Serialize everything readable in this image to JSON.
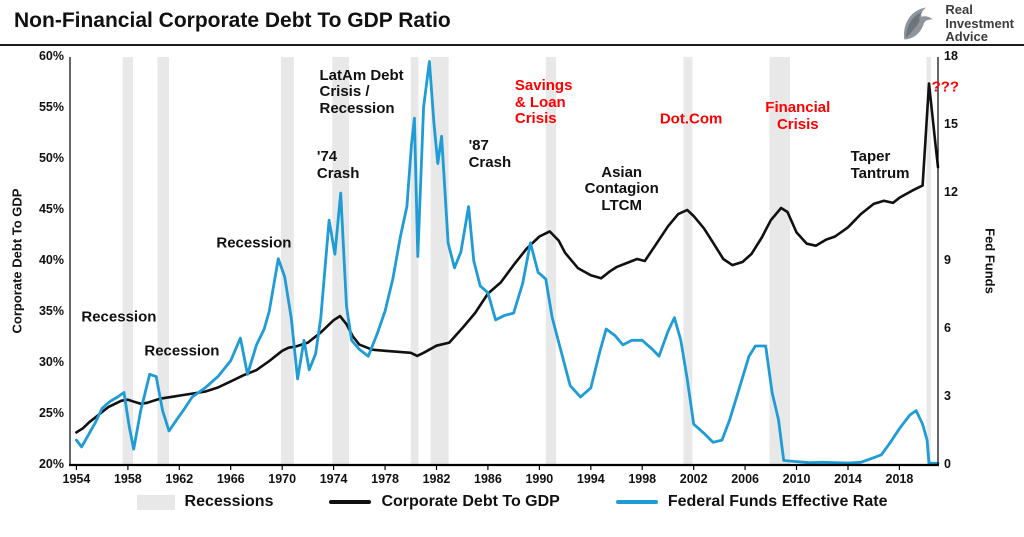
{
  "header": {
    "title": "Non-Financial Corporate Debt To GDP Ratio"
  },
  "logo": {
    "lines": [
      "Real",
      "Investment",
      "Advice"
    ]
  },
  "legend": {
    "items": [
      {
        "label": "Recessions",
        "type": "band",
        "color": "#e8e8e8"
      },
      {
        "label": "Corporate Debt To GDP",
        "type": "line",
        "color": "#111111"
      },
      {
        "label": "Federal Funds Effective Rate",
        "type": "line",
        "color": "#1F9BD5"
      }
    ]
  },
  "chart_data": {
    "type": "line",
    "title": "Non-Financial Corporate Debt To GDP Ratio",
    "grid": false,
    "legend_position": "bottom",
    "x_axis": {
      "min": 1953.5,
      "max": 2021,
      "ticks": [
        1954,
        1958,
        1962,
        1966,
        1970,
        1974,
        1978,
        1982,
        1986,
        1990,
        1994,
        1998,
        2002,
        2006,
        2010,
        2014,
        2018
      ]
    },
    "y_left": {
      "label": "Corporate Debt To GDP",
      "min": 20,
      "max": 60,
      "tick_values": [
        20,
        25,
        30,
        35,
        40,
        45,
        50,
        55,
        60
      ],
      "tick_labels": [
        "20%",
        "25%",
        "30%",
        "35%",
        "40%",
        "45%",
        "50%",
        "55%",
        "60%"
      ]
    },
    "y_right": {
      "label": "Fed Funds",
      "min": 0,
      "max": 18,
      "tick_values": [
        0,
        3,
        6,
        9,
        12,
        15,
        18
      ],
      "tick_labels": [
        "0",
        "3",
        "6",
        "9",
        "12",
        "15",
        "18"
      ]
    },
    "recessions": {
      "label": "Recessions",
      "color": "#e8e8e8",
      "bands": [
        [
          1957.6,
          1958.4
        ],
        [
          1960.3,
          1961.2
        ],
        [
          1969.9,
          1970.9
        ],
        [
          1973.9,
          1975.2
        ],
        [
          1980.0,
          1980.6
        ],
        [
          1981.55,
          1982.95
        ],
        [
          1990.5,
          1991.3
        ],
        [
          2001.2,
          2001.9
        ],
        [
          2007.9,
          2009.5
        ],
        [
          2020.1,
          2020.45
        ]
      ]
    },
    "series": [
      {
        "name": "Corporate Debt To GDP",
        "axis": "left",
        "color": "#111111",
        "width": 2.6,
        "points": [
          [
            1954,
            23.2
          ],
          [
            1954.5,
            23.6
          ],
          [
            1955,
            24.2
          ],
          [
            1955.5,
            24.7
          ],
          [
            1956,
            25.2
          ],
          [
            1956.5,
            25.7
          ],
          [
            1957,
            26.0
          ],
          [
            1957.5,
            26.3
          ],
          [
            1958,
            26.4
          ],
          [
            1958.5,
            26.2
          ],
          [
            1959,
            26.0
          ],
          [
            1959.5,
            26.1
          ],
          [
            1960,
            26.3
          ],
          [
            1960.5,
            26.5
          ],
          [
            1961,
            26.6
          ],
          [
            1961.5,
            26.7
          ],
          [
            1962,
            26.8
          ],
          [
            1963,
            27.0
          ],
          [
            1964,
            27.2
          ],
          [
            1965,
            27.6
          ],
          [
            1966,
            28.2
          ],
          [
            1966.5,
            28.5
          ],
          [
            1967,
            28.8
          ],
          [
            1968,
            29.3
          ],
          [
            1969,
            30.2
          ],
          [
            1970,
            31.2
          ],
          [
            1970.5,
            31.5
          ],
          [
            1971,
            31.6
          ],
          [
            1972,
            32.0
          ],
          [
            1973,
            33.0
          ],
          [
            1974,
            34.2
          ],
          [
            1974.5,
            34.6
          ],
          [
            1975,
            33.8
          ],
          [
            1975.5,
            32.6
          ],
          [
            1976,
            31.8
          ],
          [
            1977,
            31.3
          ],
          [
            1978,
            31.2
          ],
          [
            1979,
            31.1
          ],
          [
            1980,
            31.0
          ],
          [
            1980.5,
            30.7
          ],
          [
            1981,
            31.0
          ],
          [
            1982,
            31.7
          ],
          [
            1983,
            32.0
          ],
          [
            1984,
            33.4
          ],
          [
            1985,
            34.9
          ],
          [
            1986,
            36.8
          ],
          [
            1987,
            37.9
          ],
          [
            1988,
            39.6
          ],
          [
            1989,
            41.2
          ],
          [
            1990,
            42.4
          ],
          [
            1990.8,
            42.9
          ],
          [
            1991.5,
            42.0
          ],
          [
            1992,
            40.8
          ],
          [
            1993,
            39.3
          ],
          [
            1994,
            38.6
          ],
          [
            1994.8,
            38.3
          ],
          [
            1995.5,
            39.0
          ],
          [
            1996,
            39.4
          ],
          [
            1997,
            39.9
          ],
          [
            1997.6,
            40.2
          ],
          [
            1998.2,
            40.0
          ],
          [
            1999,
            41.5
          ],
          [
            2000,
            43.4
          ],
          [
            2000.8,
            44.6
          ],
          [
            2001.5,
            45.0
          ],
          [
            2002,
            44.4
          ],
          [
            2002.8,
            43.2
          ],
          [
            2003.5,
            41.8
          ],
          [
            2004.3,
            40.2
          ],
          [
            2005,
            39.6
          ],
          [
            2005.8,
            39.9
          ],
          [
            2006.5,
            40.7
          ],
          [
            2007.3,
            42.3
          ],
          [
            2008,
            44.0
          ],
          [
            2008.8,
            45.2
          ],
          [
            2009.3,
            44.8
          ],
          [
            2010,
            42.8
          ],
          [
            2010.8,
            41.7
          ],
          [
            2011.5,
            41.5
          ],
          [
            2012.3,
            42.1
          ],
          [
            2013,
            42.4
          ],
          [
            2014,
            43.3
          ],
          [
            2015,
            44.6
          ],
          [
            2016,
            45.6
          ],
          [
            2016.8,
            45.9
          ],
          [
            2017.5,
            45.7
          ],
          [
            2018,
            46.2
          ],
          [
            2019,
            46.9
          ],
          [
            2019.8,
            47.4
          ],
          [
            2020.3,
            57.4
          ],
          [
            2020.8,
            51.5
          ],
          [
            2021,
            49.2
          ]
        ]
      },
      {
        "name": "Federal Funds Effective Rate",
        "axis": "right",
        "color": "#1F9BD5",
        "width": 2.8,
        "points": [
          [
            1954,
            1.1
          ],
          [
            1954.4,
            0.8
          ],
          [
            1955,
            1.4
          ],
          [
            1955.5,
            1.9
          ],
          [
            1956,
            2.5
          ],
          [
            1956.6,
            2.8
          ],
          [
            1957.2,
            3.0
          ],
          [
            1957.7,
            3.2
          ],
          [
            1958.1,
            1.7
          ],
          [
            1958.45,
            0.7
          ],
          [
            1959,
            2.4
          ],
          [
            1959.7,
            4.0
          ],
          [
            1960.2,
            3.9
          ],
          [
            1960.7,
            2.4
          ],
          [
            1961.2,
            1.5
          ],
          [
            1961.8,
            2.0
          ],
          [
            1962.3,
            2.4
          ],
          [
            1963,
            3.0
          ],
          [
            1964,
            3.4
          ],
          [
            1965,
            3.9
          ],
          [
            1966,
            4.6
          ],
          [
            1966.75,
            5.6
          ],
          [
            1967.3,
            4.0
          ],
          [
            1968,
            5.3
          ],
          [
            1968.6,
            6.0
          ],
          [
            1969,
            6.8
          ],
          [
            1969.7,
            9.1
          ],
          [
            1970.2,
            8.3
          ],
          [
            1970.7,
            6.5
          ],
          [
            1971.2,
            3.8
          ],
          [
            1971.7,
            5.5
          ],
          [
            1972.1,
            4.2
          ],
          [
            1972.6,
            4.9
          ],
          [
            1973,
            6.5
          ],
          [
            1973.65,
            10.8
          ],
          [
            1974.1,
            9.3
          ],
          [
            1974.55,
            12.0
          ],
          [
            1975,
            7.0
          ],
          [
            1975.4,
            5.5
          ],
          [
            1976,
            5.1
          ],
          [
            1976.7,
            4.8
          ],
          [
            1977.4,
            5.8
          ],
          [
            1978,
            6.8
          ],
          [
            1978.6,
            8.2
          ],
          [
            1979.2,
            10.1
          ],
          [
            1979.7,
            11.4
          ],
          [
            1980.05,
            14.1
          ],
          [
            1980.28,
            15.3
          ],
          [
            1980.55,
            9.2
          ],
          [
            1981,
            15.8
          ],
          [
            1981.45,
            17.8
          ],
          [
            1981.8,
            15.1
          ],
          [
            1982.1,
            13.3
          ],
          [
            1982.4,
            14.5
          ],
          [
            1982.9,
            9.8
          ],
          [
            1983.4,
            8.7
          ],
          [
            1983.9,
            9.4
          ],
          [
            1984.5,
            11.4
          ],
          [
            1984.9,
            9.0
          ],
          [
            1985.4,
            7.9
          ],
          [
            1986,
            7.6
          ],
          [
            1986.6,
            6.4
          ],
          [
            1987.3,
            6.6
          ],
          [
            1988,
            6.7
          ],
          [
            1988.7,
            8.0
          ],
          [
            1989.3,
            9.8
          ],
          [
            1989.9,
            8.5
          ],
          [
            1990.5,
            8.2
          ],
          [
            1991,
            6.5
          ],
          [
            1991.7,
            5.0
          ],
          [
            1992.4,
            3.5
          ],
          [
            1993.2,
            3.0
          ],
          [
            1994,
            3.4
          ],
          [
            1994.7,
            5.0
          ],
          [
            1995.2,
            6.0
          ],
          [
            1995.9,
            5.7
          ],
          [
            1996.5,
            5.3
          ],
          [
            1997.2,
            5.5
          ],
          [
            1998,
            5.5
          ],
          [
            1998.8,
            5.1
          ],
          [
            1999.3,
            4.8
          ],
          [
            2000,
            5.9
          ],
          [
            2000.5,
            6.5
          ],
          [
            2001,
            5.5
          ],
          [
            2001.5,
            3.8
          ],
          [
            2002,
            1.8
          ],
          [
            2002.8,
            1.4
          ],
          [
            2003.5,
            1.0
          ],
          [
            2004.2,
            1.1
          ],
          [
            2004.8,
            2.0
          ],
          [
            2005.5,
            3.3
          ],
          [
            2006.3,
            4.8
          ],
          [
            2006.8,
            5.25
          ],
          [
            2007.6,
            5.25
          ],
          [
            2008.1,
            3.2
          ],
          [
            2008.6,
            2.0
          ],
          [
            2009,
            0.2
          ],
          [
            2010,
            0.15
          ],
          [
            2011,
            0.1
          ],
          [
            2012,
            0.12
          ],
          [
            2013,
            0.1
          ],
          [
            2014,
            0.09
          ],
          [
            2015,
            0.12
          ],
          [
            2015.9,
            0.3
          ],
          [
            2016.6,
            0.45
          ],
          [
            2017.3,
            1.0
          ],
          [
            2018,
            1.6
          ],
          [
            2018.8,
            2.2
          ],
          [
            2019.3,
            2.4
          ],
          [
            2019.8,
            1.8
          ],
          [
            2020.15,
            1.1
          ],
          [
            2020.3,
            0.08
          ],
          [
            2021,
            0.07
          ]
        ]
      }
    ],
    "annotations": [
      {
        "text": "Recession",
        "year": 1957.3,
        "value": 34.4,
        "color": "#111111",
        "align": "center"
      },
      {
        "text": "Recession",
        "year": 1962.2,
        "value": 31.1,
        "color": "#111111",
        "align": "center"
      },
      {
        "text": "Recession",
        "year": 1967.8,
        "value": 41.7,
        "color": "#111111",
        "align": "center"
      },
      {
        "text": "'74\nCrash",
        "year": 1972.7,
        "value": 49.3,
        "color": "#111111",
        "align": "left"
      },
      {
        "text": "LatAm Debt\nCrisis /\nRecession",
        "year": 1972.9,
        "value": 56.5,
        "color": "#111111",
        "align": "left"
      },
      {
        "text": "'87\nCrash",
        "year": 1984.5,
        "value": 50.4,
        "color": "#111111",
        "align": "left"
      },
      {
        "text": "Savings\n& Loan\nCrisis",
        "year": 1988.1,
        "value": 55.5,
        "color": "#FF0000",
        "align": "left"
      },
      {
        "text": "Asian\nContagion\nLTCM",
        "year": 1996.4,
        "value": 47.0,
        "color": "#111111",
        "align": "center"
      },
      {
        "text": "Dot.Com",
        "year": 2001.8,
        "value": 53.8,
        "color": "#FF0000",
        "align": "center"
      },
      {
        "text": "Financial\nCrisis",
        "year": 2010.1,
        "value": 54.1,
        "color": "#FF0000",
        "align": "center"
      },
      {
        "text": "Taper\nTantrum",
        "year": 2014.2,
        "value": 49.3,
        "color": "#111111",
        "align": "left"
      },
      {
        "text": "???",
        "year": 2020.5,
        "value": 57.0,
        "color": "#FF0000",
        "align": "left"
      }
    ]
  }
}
